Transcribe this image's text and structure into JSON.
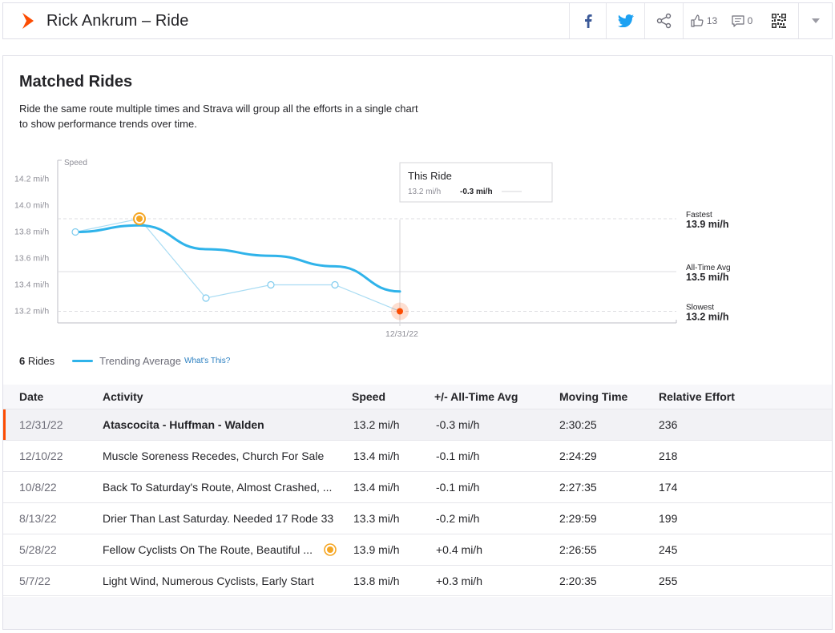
{
  "header": {
    "title": "Rick Ankrum – Ride",
    "brand_color": "#fc4c02",
    "kudos_count": "13",
    "comment_count": "0",
    "icons": [
      "strava-logo-icon",
      "facebook-icon",
      "twitter-icon",
      "share-icon",
      "thumbs-up-icon",
      "comment-icon",
      "qr-code-icon",
      "chevron-down-icon"
    ]
  },
  "panel": {
    "title": "Matched Rides",
    "description": "Ride the same route multiple times and Strava will group all the efforts in a single chart to show performance trends over time."
  },
  "chart_data": {
    "type": "line",
    "ylabel": "Speed",
    "y_ticks": [
      "13.2 mi/h",
      "13.4 mi/h",
      "13.6 mi/h",
      "13.8 mi/h",
      "14.0 mi/h",
      "14.2 mi/h"
    ],
    "ylim": [
      13.1,
      14.3
    ],
    "x_tick_label": "12/31/22",
    "series": [
      {
        "values": [
          13.8,
          13.9,
          13.3,
          13.4,
          13.4,
          13.2
        ],
        "color": "#a9dcf3"
      },
      {
        "name": "Trending Average",
        "values": [
          13.8,
          13.85,
          13.67,
          13.62,
          13.54,
          13.35
        ],
        "color": "#2fb3ea"
      }
    ],
    "best_index": 1,
    "current_index": 5,
    "reference_lines": [
      {
        "label": "Fastest",
        "value": 13.9,
        "value_label": "13.9 mi/h",
        "style": "dashed"
      },
      {
        "label": "All-Time Avg",
        "value": 13.5,
        "value_label": "13.5 mi/h",
        "style": "solid"
      },
      {
        "label": "Slowest",
        "value": 13.2,
        "value_label": "13.2 mi/h",
        "style": "dashed"
      }
    ],
    "tooltip": {
      "title": "This Ride",
      "speed": "13.2 mi/h",
      "diff": "-0.3 mi/h"
    },
    "colors": {
      "best": "#f5a623",
      "current": "#fc4c02",
      "grid": "#dcdce0"
    }
  },
  "legend": {
    "count_num": "6",
    "count_label": "Rides",
    "series_label": "Trending Average",
    "link": "What's This?"
  },
  "table": {
    "headers": [
      "Date",
      "Activity",
      "Speed",
      "+/- All-Time Avg",
      "Moving Time",
      "Relative Effort"
    ],
    "rows": [
      {
        "date": "12/31/22",
        "activity": "Atascocita - Huffman - Walden",
        "speed": "13.2 mi/h",
        "diff": "-0.3 mi/h",
        "time": "2:30:25",
        "effort": "236"
      },
      {
        "date": "12/10/22",
        "activity": "Muscle Soreness Recedes, Church For Sale",
        "speed": "13.4 mi/h",
        "diff": "-0.1 mi/h",
        "time": "2:24:29",
        "effort": "218"
      },
      {
        "date": "10/8/22",
        "activity": "Back To Saturday's Route, Almost Crashed, ...",
        "speed": "13.4 mi/h",
        "diff": "-0.1 mi/h",
        "time": "2:27:35",
        "effort": "174"
      },
      {
        "date": "8/13/22",
        "activity": "Drier Than Last Saturday. Needed 17 Rode 33",
        "speed": "13.3 mi/h",
        "diff": "-0.2 mi/h",
        "time": "2:29:59",
        "effort": "199"
      },
      {
        "date": "5/28/22",
        "activity": "Fellow Cyclists On The Route, Beautiful ...",
        "speed": "13.9 mi/h",
        "diff": "+0.4 mi/h",
        "time": "2:26:55",
        "effort": "245"
      },
      {
        "date": "5/7/22",
        "activity": "Light Wind, Numerous Cyclists, Early Start",
        "speed": "13.8 mi/h",
        "diff": "+0.3 mi/h",
        "time": "2:20:35",
        "effort": "255"
      }
    ]
  }
}
